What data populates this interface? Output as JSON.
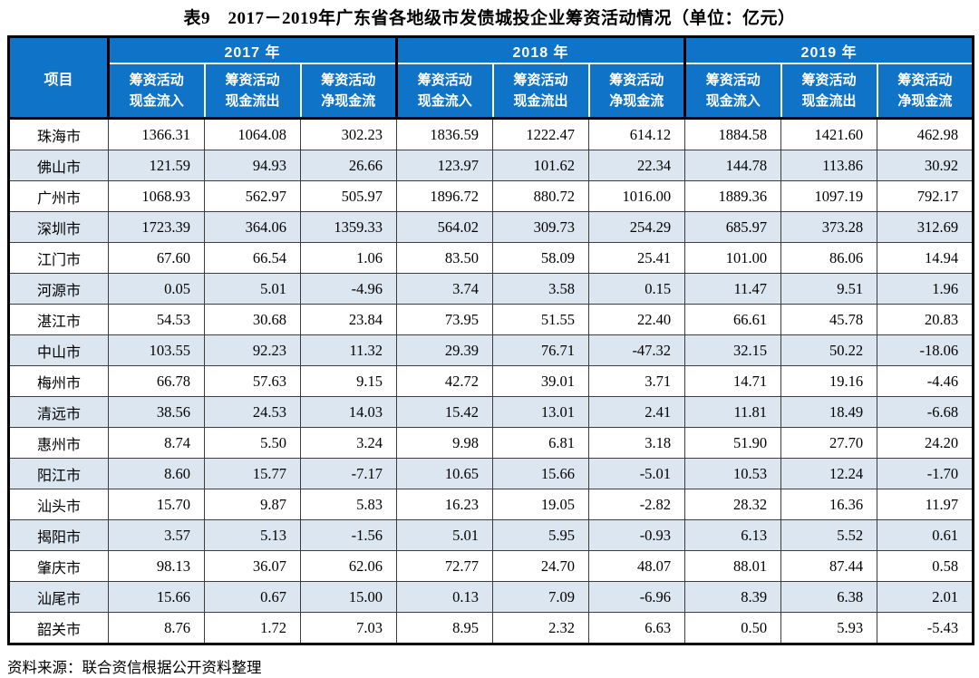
{
  "page": {
    "title": "表9　2017－2019年广东省各地级市发债城投企业筹资活动情况（单位：亿元）",
    "source_note": "资料来源：联合资信根据公开资料整理"
  },
  "colors": {
    "header_bg": "#0F74C8",
    "header_text": "#FFFFFF",
    "row_alt_bg": "#DCE6F1",
    "border_dark": "#3D3D3D",
    "border_black": "#000000"
  },
  "table": {
    "corner_header": "项目",
    "year_groups": [
      {
        "label": "2017 年"
      },
      {
        "label": "2018 年"
      },
      {
        "label": "2019 年"
      }
    ],
    "sub_headers": [
      {
        "line1": "筹资活动",
        "line2": "现金流入"
      },
      {
        "line1": "筹资活动",
        "line2": "现金流出"
      },
      {
        "line1": "筹资活动",
        "line2": "净现金流"
      }
    ],
    "rows": [
      {
        "city": "珠海市",
        "values": [
          "1366.31",
          "1064.08",
          "302.23",
          "1836.59",
          "1222.47",
          "614.12",
          "1884.58",
          "1421.60",
          "462.98"
        ]
      },
      {
        "city": "佛山市",
        "values": [
          "121.59",
          "94.93",
          "26.66",
          "123.97",
          "101.62",
          "22.34",
          "144.78",
          "113.86",
          "30.92"
        ]
      },
      {
        "city": "广州市",
        "values": [
          "1068.93",
          "562.97",
          "505.97",
          "1896.72",
          "880.72",
          "1016.00",
          "1889.36",
          "1097.19",
          "792.17"
        ]
      },
      {
        "city": "深圳市",
        "values": [
          "1723.39",
          "364.06",
          "1359.33",
          "564.02",
          "309.73",
          "254.29",
          "685.97",
          "373.28",
          "312.69"
        ]
      },
      {
        "city": "江门市",
        "values": [
          "67.60",
          "66.54",
          "1.06",
          "83.50",
          "58.09",
          "25.41",
          "101.00",
          "86.06",
          "14.94"
        ]
      },
      {
        "city": "河源市",
        "values": [
          "0.05",
          "5.01",
          "-4.96",
          "3.74",
          "3.58",
          "0.15",
          "11.47",
          "9.51",
          "1.96"
        ]
      },
      {
        "city": "湛江市",
        "values": [
          "54.53",
          "30.68",
          "23.84",
          "73.95",
          "51.55",
          "22.40",
          "66.61",
          "45.78",
          "20.83"
        ]
      },
      {
        "city": "中山市",
        "values": [
          "103.55",
          "92.23",
          "11.32",
          "29.39",
          "76.71",
          "-47.32",
          "32.15",
          "50.22",
          "-18.06"
        ]
      },
      {
        "city": "梅州市",
        "values": [
          "66.78",
          "57.63",
          "9.15",
          "42.72",
          "39.01",
          "3.71",
          "14.71",
          "19.16",
          "-4.46"
        ]
      },
      {
        "city": "清远市",
        "values": [
          "38.56",
          "24.53",
          "14.03",
          "15.42",
          "13.01",
          "2.41",
          "11.81",
          "18.49",
          "-6.68"
        ]
      },
      {
        "city": "惠州市",
        "values": [
          "8.74",
          "5.50",
          "3.24",
          "9.98",
          "6.81",
          "3.18",
          "51.90",
          "27.70",
          "24.20"
        ]
      },
      {
        "city": "阳江市",
        "values": [
          "8.60",
          "15.77",
          "-7.17",
          "10.65",
          "15.66",
          "-5.01",
          "10.53",
          "12.24",
          "-1.70"
        ]
      },
      {
        "city": "汕头市",
        "values": [
          "15.70",
          "9.87",
          "5.83",
          "16.23",
          "19.05",
          "-2.82",
          "28.32",
          "16.36",
          "11.97"
        ]
      },
      {
        "city": "揭阳市",
        "values": [
          "3.57",
          "5.13",
          "-1.56",
          "5.01",
          "5.95",
          "-0.93",
          "6.13",
          "5.52",
          "0.61"
        ]
      },
      {
        "city": "肇庆市",
        "values": [
          "98.13",
          "36.07",
          "62.06",
          "72.77",
          "24.70",
          "48.07",
          "88.01",
          "87.44",
          "0.58"
        ]
      },
      {
        "city": "汕尾市",
        "values": [
          "15.66",
          "0.67",
          "15.00",
          "0.13",
          "7.09",
          "-6.96",
          "8.39",
          "6.38",
          "2.01"
        ]
      },
      {
        "city": "韶关市",
        "values": [
          "8.76",
          "1.72",
          "7.03",
          "8.95",
          "2.32",
          "6.63",
          "0.50",
          "5.93",
          "-5.43"
        ]
      }
    ]
  }
}
